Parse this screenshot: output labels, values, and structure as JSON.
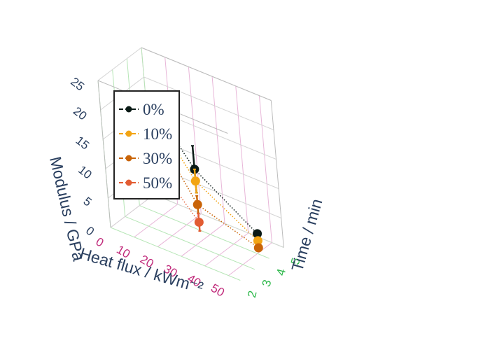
{
  "chart_data": {
    "type": "scatter3d",
    "title": "",
    "axes": {
      "x": {
        "label": "Heat flux / kWm⁻²",
        "ticks": [
          0,
          10,
          20,
          30,
          40,
          50
        ],
        "range": [
          0,
          55
        ],
        "tick_color": "#c0297a"
      },
      "y": {
        "label": "Time / min",
        "ticks": [
          2,
          3,
          4,
          5
        ],
        "range": [
          2,
          5
        ],
        "tick_color": "#2eb84b"
      },
      "z": {
        "label": "Modulus / GPa",
        "ticks": [
          0,
          5,
          10,
          15,
          20,
          25
        ],
        "range": [
          0,
          25
        ],
        "tick_color": "#2a3f5f"
      }
    },
    "grid": true,
    "legend": {
      "position": "top-left",
      "entries": [
        "0%",
        "10%",
        "30%",
        "50%"
      ]
    },
    "series": [
      {
        "name": "0%",
        "color": "#0a1a16",
        "line": "dotted",
        "points": [
          {
            "x": 25,
            "y": 2.0,
            "z": 23.5
          },
          {
            "x": 35,
            "y": 2.6,
            "z": 14.5,
            "err": 4.0
          },
          {
            "x": 50,
            "y": 4.1,
            "z": 3.2,
            "err": 0.5
          }
        ]
      },
      {
        "name": "10%",
        "color": "#f2a414",
        "line": "dotted",
        "points": [
          {
            "x": 25,
            "y": 2.0,
            "z": 22.0
          },
          {
            "x": 35,
            "y": 2.6,
            "z": 12.5,
            "err": 2.0
          },
          {
            "x": 50,
            "y": 4.1,
            "z": 2.0,
            "err": 0.5
          }
        ]
      },
      {
        "name": "30%",
        "color": "#c96408",
        "line": "dotted",
        "points": [
          {
            "x": 25,
            "y": 2.0,
            "z": 19.0
          },
          {
            "x": 35,
            "y": 2.6,
            "z": 8.5,
            "err": 1.5
          },
          {
            "x": 50,
            "y": 4.1,
            "z": 0.8,
            "err": 0.2
          }
        ]
      },
      {
        "name": "50%",
        "color": "#e25c32",
        "line": "dotted",
        "points": [
          {
            "x": 25,
            "y": 2.0,
            "z": 13.5
          },
          {
            "x": 35,
            "y": 2.6,
            "z": 5.5,
            "err": 1.5
          }
        ]
      }
    ]
  }
}
